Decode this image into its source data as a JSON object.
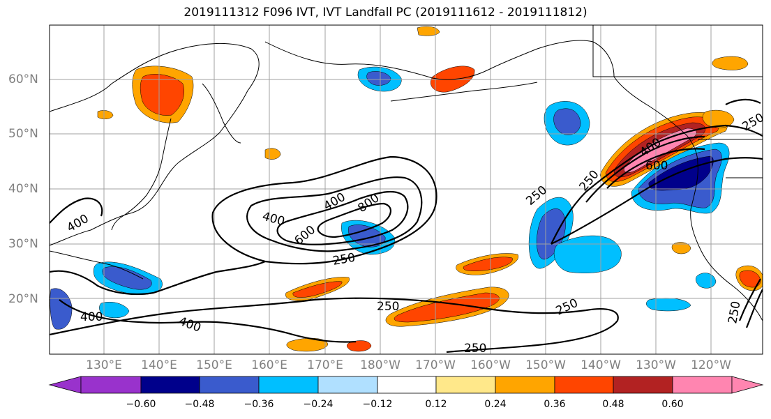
{
  "title": "2019111312 F096 IVT, IVT Landfall PC (2019111612 - 2019111812)",
  "map": {
    "lat_ticks": [
      "60°N",
      "50°N",
      "40°N",
      "30°N",
      "20°N"
    ],
    "lon_ticks": [
      "130°E",
      "140°E",
      "150°E",
      "160°E",
      "170°E",
      "180°W",
      "170°W",
      "160°W",
      "150°W",
      "140°W",
      "130°W",
      "120°W"
    ],
    "contour_labels": [
      "400",
      "600",
      "800",
      "400",
      "250",
      "250",
      "400",
      "600",
      "250",
      "250",
      "250",
      "250",
      "400",
      "400",
      "250",
      "250",
      "400"
    ]
  },
  "colorbar": {
    "ticks": [
      "−0.60",
      "−0.48",
      "−0.36",
      "−0.24",
      "−0.12",
      "0.12",
      "0.24",
      "0.36",
      "0.48",
      "0.60"
    ],
    "colors": [
      "#9932cc",
      "#00008b",
      "#3a5bcd",
      "#00bfff",
      "#b0e0ff",
      "#ffffff",
      "#ffe88a",
      "#ffa500",
      "#ff4500",
      "#b22222",
      "#ff85b0"
    ]
  }
}
